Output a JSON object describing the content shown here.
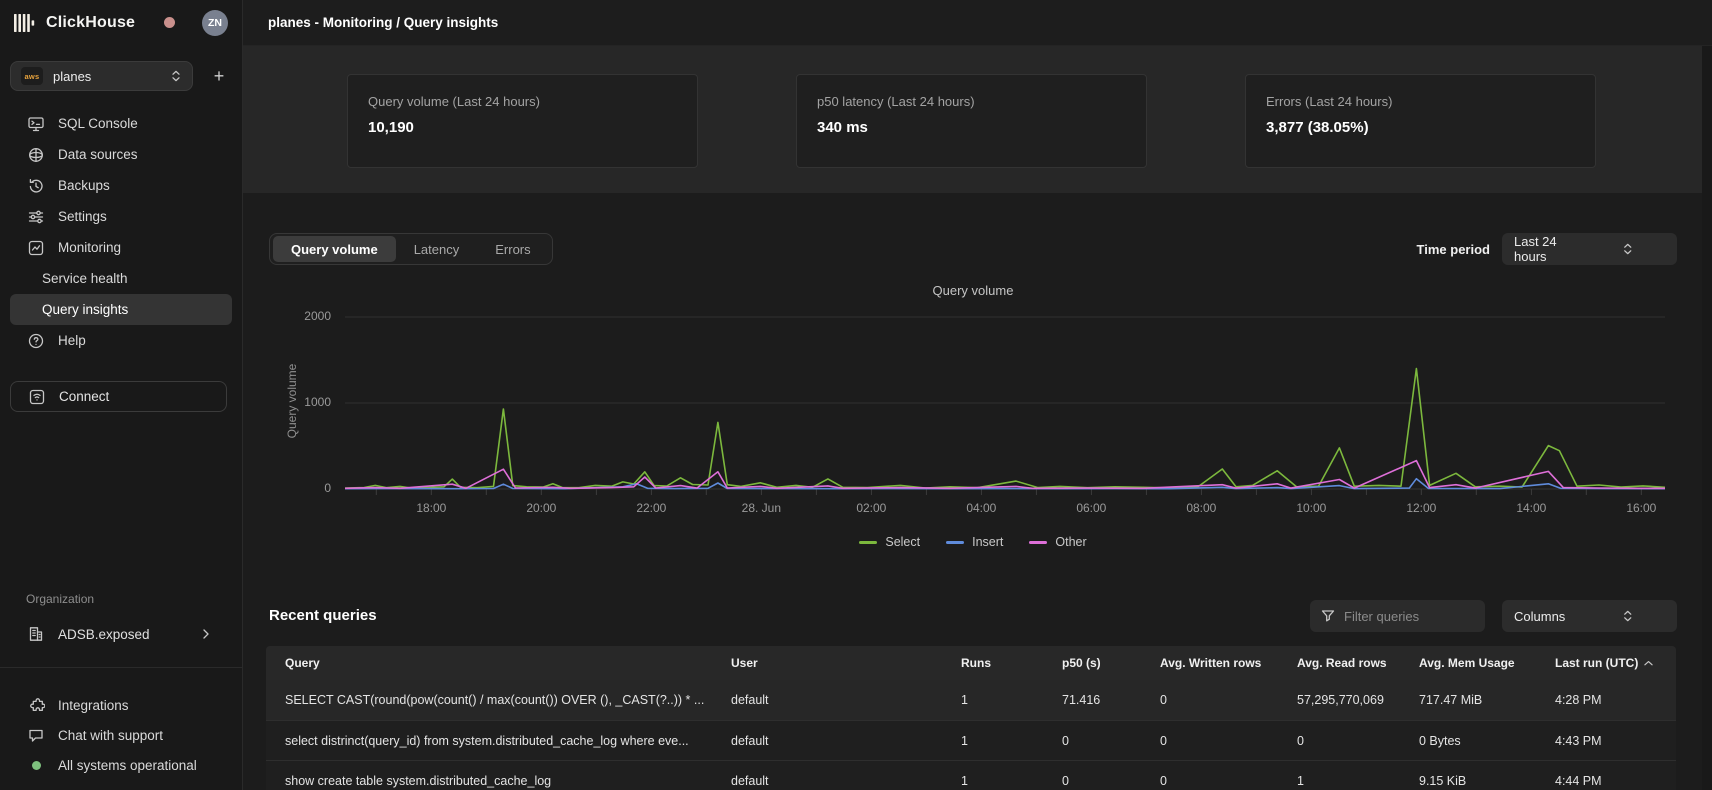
{
  "topbar": {
    "title": "planes - Monitoring / Query insights"
  },
  "sidebar": {
    "brand": "ClickHouse",
    "avatar_initials": "ZN",
    "service_selector": {
      "value": "planes",
      "provider": "aws",
      "provider_icon": "aws-icon",
      "chevron_icon": "chevron-updown-icon"
    },
    "add_button_label": "+",
    "nav": [
      {
        "label": "SQL Console",
        "icon": "sql-console"
      },
      {
        "label": "Data sources",
        "icon": "data-sources"
      },
      {
        "label": "Backups",
        "icon": "backups"
      },
      {
        "label": "Settings",
        "icon": "settings"
      },
      {
        "label": "Monitoring",
        "icon": "monitoring"
      },
      {
        "label": "Service health",
        "indent": true
      },
      {
        "label": "Query insights",
        "indent": true,
        "selected": true
      },
      {
        "label": "Help",
        "icon": "help"
      }
    ],
    "connect_label": "Connect",
    "connect_icon": "connect",
    "organization_label": "Organization",
    "organization_name": "ADSB.exposed",
    "organization_icon": "building",
    "footer": [
      {
        "label": "Integrations",
        "icon": "integrations"
      },
      {
        "label": "Chat with support",
        "icon": "chat"
      },
      {
        "label": "All systems operational",
        "icon": "status-dot",
        "status_color": "#7ec07e"
      }
    ]
  },
  "stats": [
    {
      "label": "Query volume (Last 24 hours)",
      "value": "10,190"
    },
    {
      "label": "p50 latency (Last 24 hours)",
      "value": "340 ms"
    },
    {
      "label": "Errors (Last 24 hours)",
      "value": "3,877 (38.05%)"
    }
  ],
  "tabs": {
    "items": [
      "Query volume",
      "Latency",
      "Errors"
    ],
    "active_index": 0
  },
  "time_period": {
    "label": "Time period",
    "value": "Last 24 hours"
  },
  "chart_data": {
    "type": "line",
    "title": "Query volume",
    "xlabel": "",
    "ylabel": "Query volume",
    "ylim": [
      0,
      2000
    ],
    "yticks": [
      0,
      1000,
      2000
    ],
    "gridlines_y": [
      1000,
      2000
    ],
    "legend_position": "bottom",
    "x_axis_hours_span": 24,
    "minor_tick_first_h": 0.57,
    "xticks": [
      {
        "h": 1.57,
        "label": "18:00"
      },
      {
        "h": 3.57,
        "label": "20:00"
      },
      {
        "h": 5.57,
        "label": "22:00"
      },
      {
        "h": 7.57,
        "label": "28. Jun"
      },
      {
        "h": 9.57,
        "label": "02:00"
      },
      {
        "h": 11.57,
        "label": "04:00"
      },
      {
        "h": 13.57,
        "label": "06:00"
      },
      {
        "h": 15.57,
        "label": "08:00"
      },
      {
        "h": 17.57,
        "label": "10:00"
      },
      {
        "h": 19.57,
        "label": "12:00"
      },
      {
        "h": 21.57,
        "label": "14:00"
      },
      {
        "h": 23.57,
        "label": "16:00"
      }
    ],
    "series": [
      {
        "name": "Select",
        "color": "#7cb83d",
        "points": [
          [
            0,
            12
          ],
          [
            0.35,
            18
          ],
          [
            0.55,
            42
          ],
          [
            0.75,
            15
          ],
          [
            1.0,
            30
          ],
          [
            1.2,
            12
          ],
          [
            1.5,
            18
          ],
          [
            1.8,
            25
          ],
          [
            1.95,
            115
          ],
          [
            2.1,
            20
          ],
          [
            2.4,
            15
          ],
          [
            2.7,
            30
          ],
          [
            2.88,
            930
          ],
          [
            3.05,
            40
          ],
          [
            3.3,
            25
          ],
          [
            3.6,
            22
          ],
          [
            3.78,
            62
          ],
          [
            3.95,
            18
          ],
          [
            4.25,
            15
          ],
          [
            4.55,
            42
          ],
          [
            4.85,
            32
          ],
          [
            5.05,
            82
          ],
          [
            5.25,
            58
          ],
          [
            5.45,
            200
          ],
          [
            5.62,
            40
          ],
          [
            5.85,
            35
          ],
          [
            6.1,
            130
          ],
          [
            6.32,
            52
          ],
          [
            6.6,
            46
          ],
          [
            6.78,
            775
          ],
          [
            6.95,
            50
          ],
          [
            7.2,
            30
          ],
          [
            7.55,
            72
          ],
          [
            7.85,
            20
          ],
          [
            8.2,
            42
          ],
          [
            8.5,
            20
          ],
          [
            8.78,
            118
          ],
          [
            9.05,
            20
          ],
          [
            9.5,
            16
          ],
          [
            10.1,
            42
          ],
          [
            10.55,
            12
          ],
          [
            11.0,
            26
          ],
          [
            11.5,
            15
          ],
          [
            12.2,
            92
          ],
          [
            12.6,
            16
          ],
          [
            13.0,
            30
          ],
          [
            13.5,
            15
          ],
          [
            14.0,
            26
          ],
          [
            14.5,
            20
          ],
          [
            15.0,
            13
          ],
          [
            15.5,
            22
          ],
          [
            15.95,
            232
          ],
          [
            16.2,
            26
          ],
          [
            16.5,
            42
          ],
          [
            16.95,
            212
          ],
          [
            17.3,
            26
          ],
          [
            17.7,
            32
          ],
          [
            18.08,
            478
          ],
          [
            18.35,
            32
          ],
          [
            18.8,
            42
          ],
          [
            19.2,
            32
          ],
          [
            19.48,
            1400
          ],
          [
            19.72,
            42
          ],
          [
            20.2,
            182
          ],
          [
            20.55,
            26
          ],
          [
            21.0,
            32
          ],
          [
            21.4,
            22
          ],
          [
            21.88,
            505
          ],
          [
            22.08,
            445
          ],
          [
            22.4,
            32
          ],
          [
            22.8,
            46
          ],
          [
            23.2,
            22
          ],
          [
            23.6,
            36
          ],
          [
            24,
            20
          ]
        ]
      },
      {
        "name": "Insert",
        "color": "#5f8bdb",
        "points": [
          [
            0,
            4
          ],
          [
            1,
            5
          ],
          [
            2,
            4
          ],
          [
            2.7,
            6
          ],
          [
            2.88,
            56
          ],
          [
            3.05,
            6
          ],
          [
            4,
            4
          ],
          [
            5.05,
            26
          ],
          [
            5.3,
            60
          ],
          [
            5.5,
            8
          ],
          [
            6,
            5
          ],
          [
            6.6,
            8
          ],
          [
            6.78,
            70
          ],
          [
            6.95,
            6
          ],
          [
            8,
            5
          ],
          [
            9,
            4
          ],
          [
            10,
            5
          ],
          [
            11,
            4
          ],
          [
            12,
            5
          ],
          [
            13,
            4
          ],
          [
            14,
            5
          ],
          [
            15,
            4
          ],
          [
            15.95,
            20
          ],
          [
            16.2,
            5
          ],
          [
            16.95,
            16
          ],
          [
            17.2,
            5
          ],
          [
            18.08,
            40
          ],
          [
            18.35,
            5
          ],
          [
            19.35,
            10
          ],
          [
            19.48,
            120
          ],
          [
            19.7,
            6
          ],
          [
            21,
            5
          ],
          [
            21.88,
            60
          ],
          [
            22.1,
            8
          ],
          [
            23,
            5
          ],
          [
            24,
            4
          ]
        ]
      },
      {
        "name": "Other",
        "color": "#de6fd8",
        "points": [
          [
            0,
            8
          ],
          [
            0.55,
            16
          ],
          [
            1,
            8
          ],
          [
            1.95,
            56
          ],
          [
            2.2,
            8
          ],
          [
            2.88,
            230
          ],
          [
            3.1,
            12
          ],
          [
            3.78,
            20
          ],
          [
            4.1,
            8
          ],
          [
            4.85,
            16
          ],
          [
            5.25,
            26
          ],
          [
            5.45,
            140
          ],
          [
            5.65,
            12
          ],
          [
            6.1,
            40
          ],
          [
            6.4,
            10
          ],
          [
            6.78,
            200
          ],
          [
            6.95,
            12
          ],
          [
            7.55,
            30
          ],
          [
            7.85,
            8
          ],
          [
            8.78,
            36
          ],
          [
            9.05,
            8
          ],
          [
            10.1,
            16
          ],
          [
            11,
            8
          ],
          [
            12.2,
            30
          ],
          [
            12.5,
            8
          ],
          [
            13.5,
            10
          ],
          [
            14.5,
            8
          ],
          [
            15.95,
            50
          ],
          [
            16.2,
            10
          ],
          [
            16.95,
            60
          ],
          [
            17.2,
            10
          ],
          [
            18.08,
            110
          ],
          [
            18.35,
            10
          ],
          [
            19.48,
            330
          ],
          [
            19.72,
            16
          ],
          [
            20.2,
            50
          ],
          [
            20.55,
            10
          ],
          [
            21.88,
            205
          ],
          [
            22.15,
            16
          ],
          [
            22.8,
            12
          ],
          [
            23.5,
            8
          ],
          [
            24,
            8
          ]
        ]
      }
    ]
  },
  "recent": {
    "title": "Recent queries",
    "filter_placeholder": "Filter queries",
    "filter_icon": "funnel-icon",
    "columns_label": "Columns",
    "table": {
      "headers": [
        "Query",
        "User",
        "Runs",
        "p50 (s)",
        "Avg. Written rows",
        "Avg. Read rows",
        "Avg. Mem Usage",
        "Last run (UTC)"
      ],
      "sort": {
        "column": "Last run (UTC)",
        "direction": "asc"
      },
      "rows": [
        [
          "SELECT CAST(round(pow(count() / max(count()) OVER (), _CAST(?..)) * ...",
          "default",
          "1",
          "71.416",
          "0",
          "57,295,770,069",
          "717.47 MiB",
          "4:28 PM"
        ],
        [
          "select distrinct(query_id) from system.distributed_cache_log where eve...",
          "default",
          "1",
          "0",
          "0",
          "0",
          "0 Bytes",
          "4:43 PM"
        ],
        [
          "show create table system.distributed_cache_log",
          "default",
          "1",
          "0",
          "0",
          "1",
          "9.15 KiB",
          "4:44 PM"
        ]
      ]
    }
  }
}
